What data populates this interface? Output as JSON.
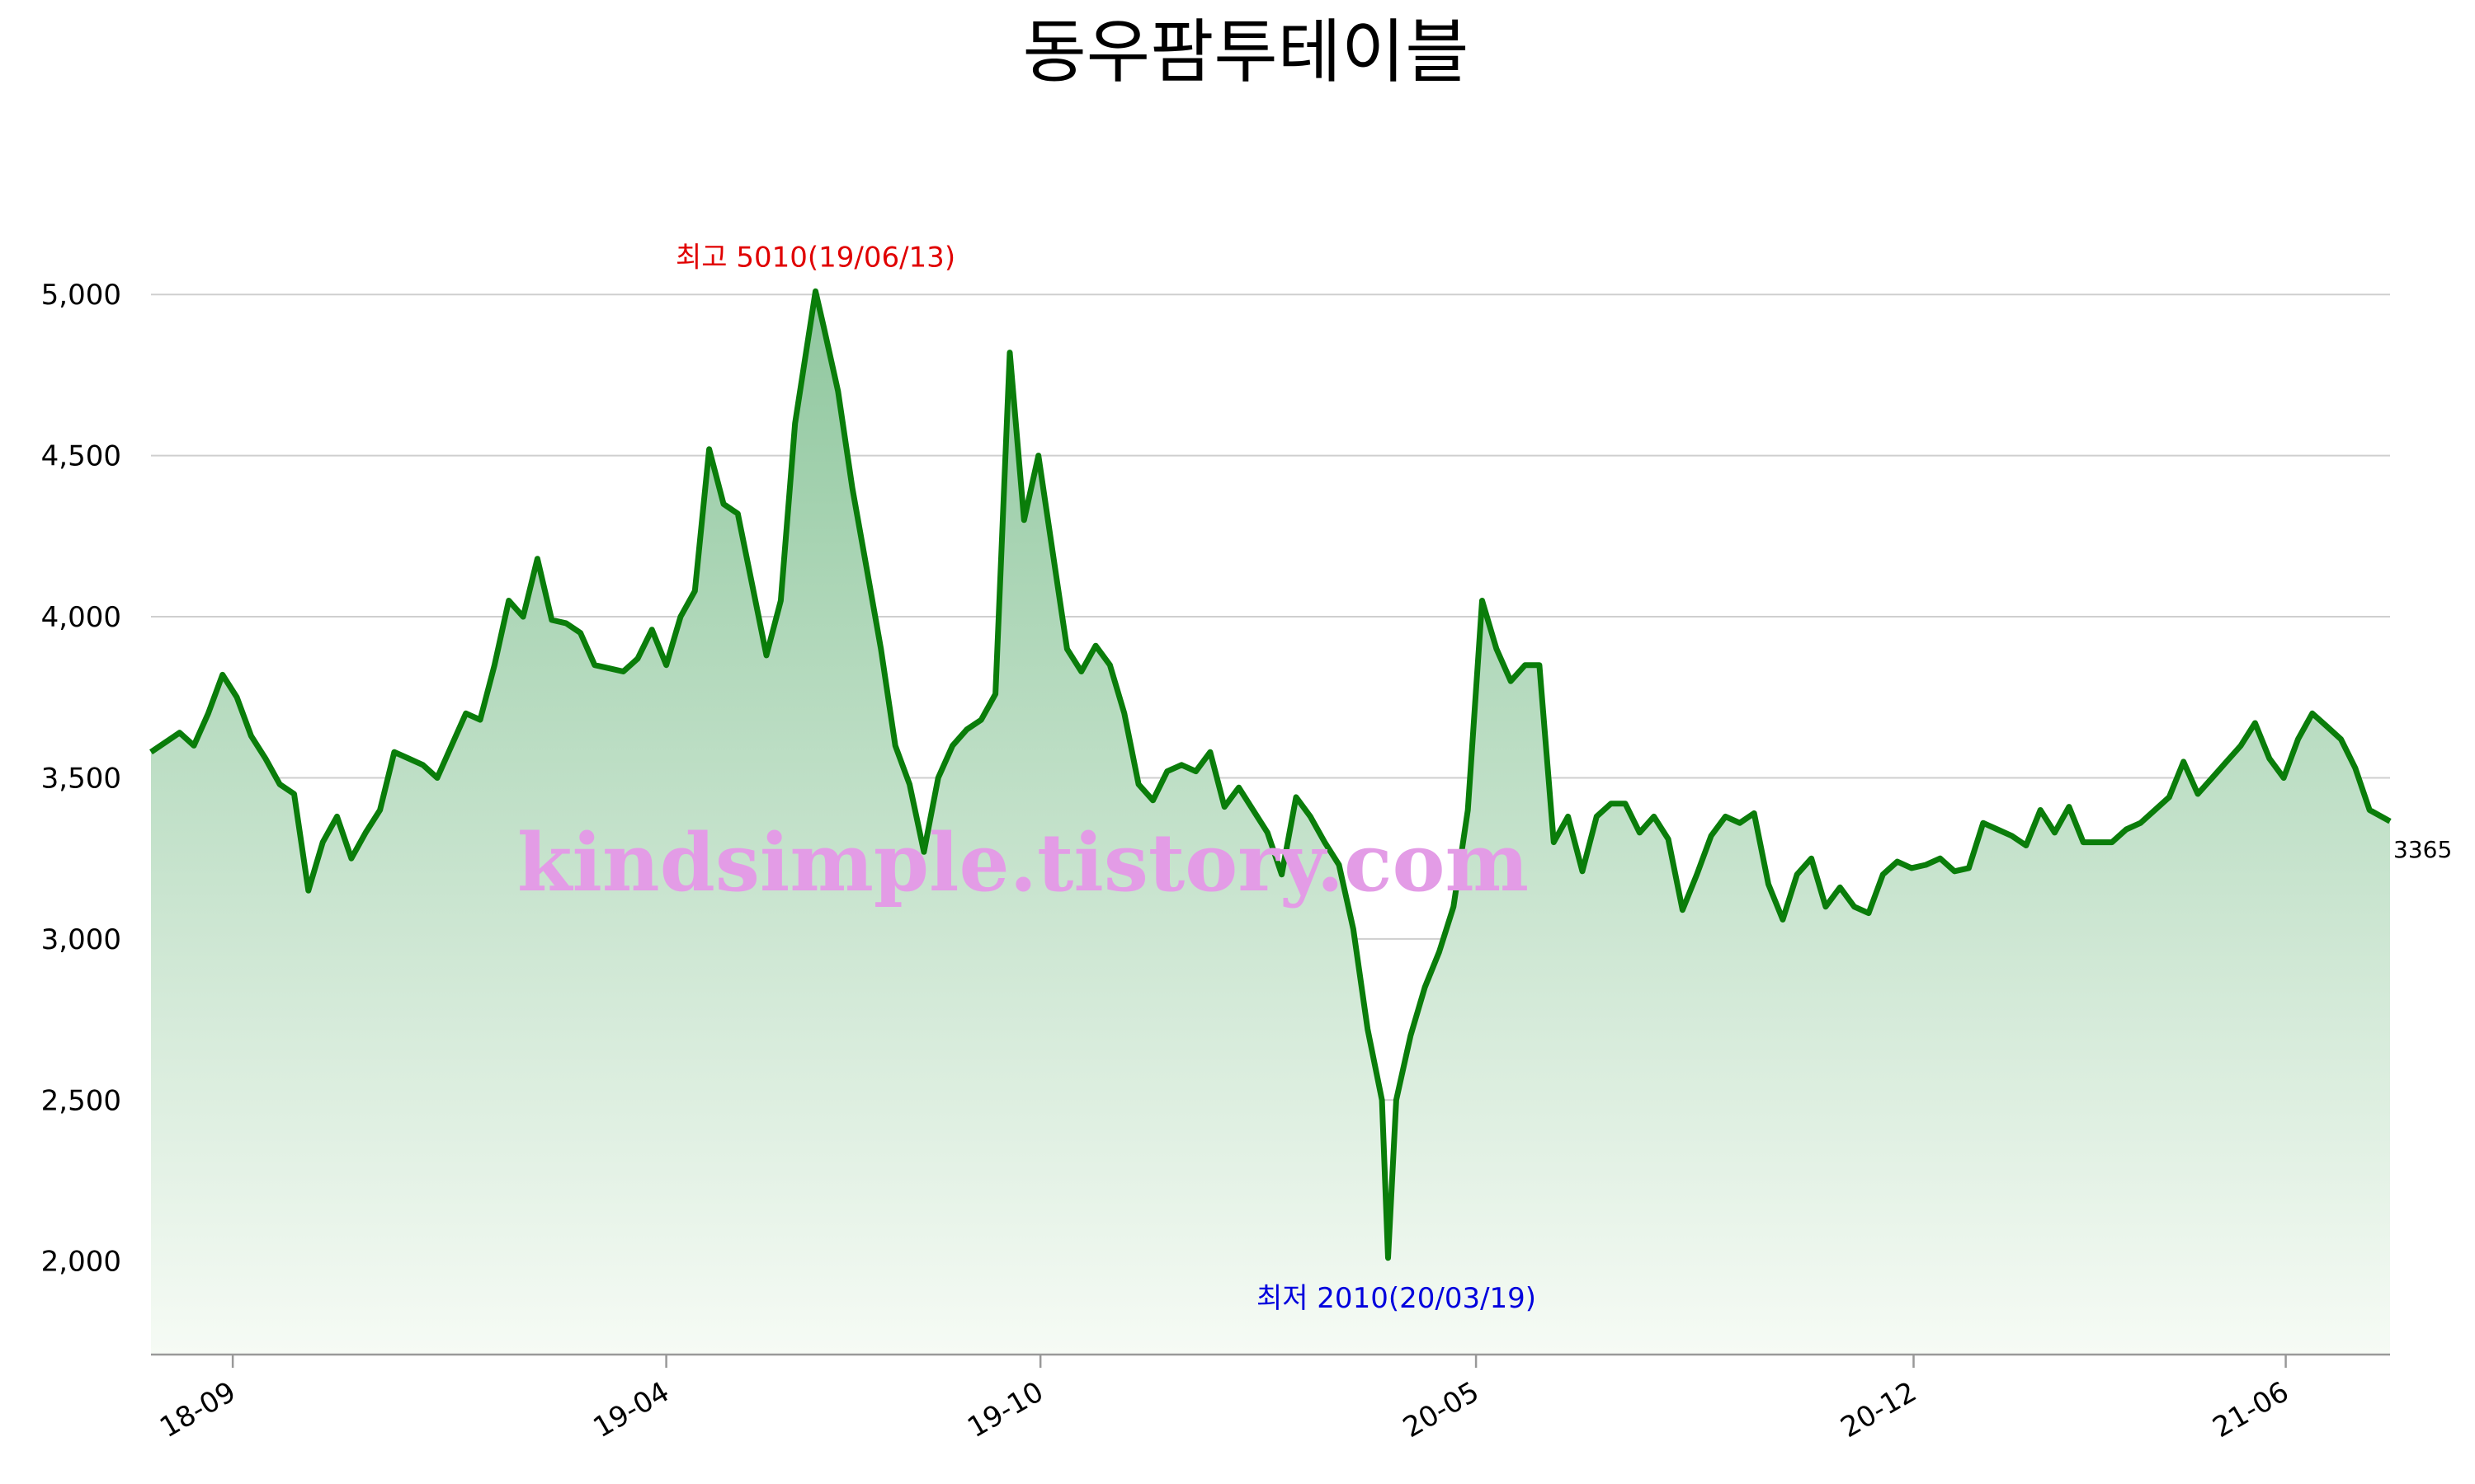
{
  "chart_data": {
    "type": "area",
    "title": "동우팜투테이블",
    "xlabel": "",
    "ylabel": "",
    "ylim": [
      1710,
      5300
    ],
    "y_ticks": [
      2000,
      2500,
      3000,
      3500,
      4000,
      4500,
      5000
    ],
    "y_tick_labels": [
      "2,000",
      "2,500",
      "3,000",
      "3,500",
      "4,000",
      "4,500",
      "5,000"
    ],
    "x_ticks": [
      "18-09",
      "19-04",
      "19-10",
      "20-05",
      "20-12",
      "21-06"
    ],
    "x_tick_dates": [
      "2018-09-01",
      "2019-04-01",
      "2019-10-01",
      "2020-05-01",
      "2020-12-01",
      "2021-06-01"
    ],
    "x_range": [
      "2018-07-23",
      "2021-07-22"
    ],
    "line_color": "#0a7d0a",
    "fill_top_color": "#8fc79e",
    "fill_bottom_color": "#f6fbf5",
    "grid": true,
    "legend": "none",
    "series": [
      {
        "x": [
          "2018-07-23",
          "2018-08-06",
          "2018-08-13",
          "2018-08-20",
          "2018-08-27",
          "2018-09-03",
          "2018-09-10",
          "2018-09-17",
          "2018-09-24",
          "2018-10-01",
          "2018-10-08",
          "2018-10-15",
          "2018-10-22",
          "2018-10-29",
          "2018-11-05",
          "2018-11-12",
          "2018-11-19",
          "2018-11-26",
          "2018-12-03",
          "2018-12-10",
          "2018-12-17",
          "2018-12-24",
          "2018-12-31",
          "2019-01-07",
          "2019-01-14",
          "2019-01-21",
          "2019-01-28",
          "2019-02-04",
          "2019-02-11",
          "2019-02-18",
          "2019-02-25",
          "2019-03-04",
          "2019-03-11",
          "2019-03-18",
          "2019-03-25",
          "2019-04-01",
          "2019-04-08",
          "2019-04-15",
          "2019-04-22",
          "2019-04-29",
          "2019-05-06",
          "2019-05-13",
          "2019-05-20",
          "2019-05-27",
          "2019-06-03",
          "2019-06-13",
          "2019-06-17",
          "2019-06-24",
          "2019-07-01",
          "2019-07-08",
          "2019-07-15",
          "2019-07-22",
          "2019-07-29",
          "2019-08-05",
          "2019-08-12",
          "2019-08-19",
          "2019-08-26",
          "2019-09-02",
          "2019-09-09",
          "2019-09-16",
          "2019-09-23",
          "2019-09-30",
          "2019-10-07",
          "2019-10-14",
          "2019-10-21",
          "2019-10-28",
          "2019-11-04",
          "2019-11-11",
          "2019-11-18",
          "2019-11-25",
          "2019-12-02",
          "2019-12-09",
          "2019-12-16",
          "2019-12-23",
          "2019-12-30",
          "2020-01-06",
          "2020-01-13",
          "2020-01-20",
          "2020-01-27",
          "2020-02-03",
          "2020-02-10",
          "2020-02-17",
          "2020-02-24",
          "2020-03-02",
          "2020-03-09",
          "2020-03-16",
          "2020-03-19",
          "2020-03-23",
          "2020-03-30",
          "2020-04-06",
          "2020-04-13",
          "2020-04-20",
          "2020-04-27",
          "2020-05-04",
          "2020-05-11",
          "2020-05-18",
          "2020-05-25",
          "2020-06-01",
          "2020-06-08",
          "2020-06-15",
          "2020-06-22",
          "2020-06-29",
          "2020-07-06",
          "2020-07-13",
          "2020-07-20",
          "2020-07-27",
          "2020-08-03",
          "2020-08-10",
          "2020-08-17",
          "2020-08-24",
          "2020-08-31",
          "2020-09-07",
          "2020-09-14",
          "2020-09-21",
          "2020-09-28",
          "2020-10-05",
          "2020-10-12",
          "2020-10-19",
          "2020-10-26",
          "2020-11-02",
          "2020-11-09",
          "2020-11-16",
          "2020-11-23",
          "2020-11-30",
          "2020-12-07",
          "2020-12-14",
          "2020-12-21",
          "2020-12-28",
          "2021-01-04",
          "2021-01-11",
          "2021-01-18",
          "2021-01-25",
          "2021-02-01",
          "2021-02-08",
          "2021-02-15",
          "2021-02-22",
          "2021-03-01",
          "2021-03-08",
          "2021-03-15",
          "2021-03-22",
          "2021-03-29",
          "2021-04-05",
          "2021-04-12",
          "2021-04-19",
          "2021-04-26",
          "2021-05-03",
          "2021-05-10",
          "2021-05-17",
          "2021-05-24",
          "2021-05-31",
          "2021-06-07",
          "2021-06-14",
          "2021-06-21",
          "2021-06-28",
          "2021-07-05",
          "2021-07-12",
          "2021-07-22"
        ],
        "y": [
          3580,
          3640,
          3600,
          3700,
          3820,
          3750,
          3630,
          3560,
          3480,
          3450,
          3150,
          3300,
          3380,
          3250,
          3330,
          3400,
          3580,
          3560,
          3540,
          3500,
          3600,
          3700,
          3680,
          3850,
          4050,
          4000,
          4180,
          3990,
          3980,
          3950,
          3850,
          3840,
          3830,
          3870,
          3960,
          3850,
          4000,
          4080,
          4520,
          4350,
          4320,
          4100,
          3880,
          4050,
          4600,
          5010,
          4900,
          4700,
          4400,
          4150,
          3900,
          3600,
          3480,
          3270,
          3500,
          3600,
          3650,
          3680,
          3760,
          4820,
          4300,
          4500,
          4200,
          3900,
          3830,
          3910,
          3850,
          3700,
          3480,
          3430,
          3520,
          3540,
          3520,
          3580,
          3410,
          3470,
          3400,
          3330,
          3200,
          3440,
          3380,
          3300,
          3230,
          3030,
          2720,
          2500,
          2010,
          2500,
          2700,
          2850,
          2960,
          3100,
          3400,
          4050,
          3900,
          3800,
          3850,
          3850,
          3300,
          3380,
          3210,
          3380,
          3420,
          3420,
          3330,
          3380,
          3310,
          3090,
          3200,
          3320,
          3380,
          3360,
          3390,
          3170,
          3060,
          3200,
          3250,
          3100,
          3160,
          3100,
          3080,
          3200,
          3240,
          3220,
          3230,
          3250,
          3210,
          3220,
          3360,
          3340,
          3320,
          3290,
          3400,
          3330,
          3410,
          3300,
          3300,
          3300,
          3340,
          3360,
          3400,
          3440,
          3550,
          3450,
          3500,
          3550,
          3600,
          3670,
          3560,
          3500,
          3620,
          3700,
          3660,
          3620,
          3530,
          3400,
          3365
        ]
      }
    ],
    "annotations": {
      "high": {
        "label": "최고 5010(19/06/13)",
        "date": "2019-06-13",
        "value": 5010,
        "color": "#e00000"
      },
      "low": {
        "label": "최저 2010(20/03/19)",
        "date": "2020-03-19",
        "value": 2010,
        "color": "#0000dd"
      },
      "last": {
        "label": "3365",
        "value": 3365
      }
    },
    "watermark": "kindsimple.tistory.com"
  }
}
